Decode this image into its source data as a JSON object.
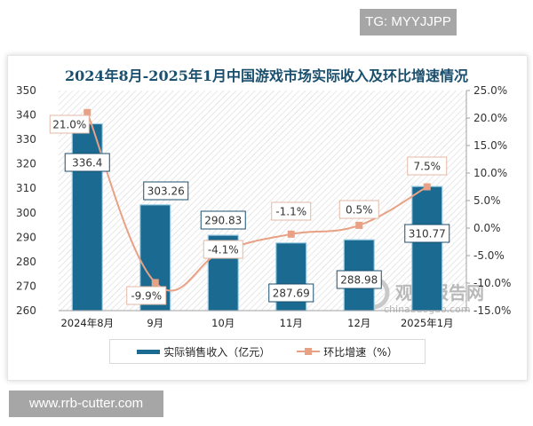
{
  "watermarks": {
    "top_right": "TG: MYYJJPP",
    "bottom_left": "www.rrb-cutter.com",
    "chart_logo": "观研报告网",
    "chart_logo_url": "chinabaogao.com"
  },
  "chart_data": {
    "type": "bar+line",
    "title": "2024年8月-2025年1月中国游戏市场实际收入及环比增速情况",
    "categories": [
      "2024年8月",
      "9月",
      "10月",
      "11月",
      "12月",
      "2025年1月"
    ],
    "series": [
      {
        "name": "实际销售收入（亿元）",
        "type": "bar",
        "axis": "left",
        "color": "#1a6a91",
        "values": [
          336.4,
          303.26,
          290.83,
          287.69,
          288.98,
          310.77
        ],
        "labels": [
          "336.4",
          "303.26",
          "290.83",
          "287.69",
          "288.98",
          "310.77"
        ]
      },
      {
        "name": "环比增速（%）",
        "type": "line",
        "axis": "right",
        "color": "#e8a184",
        "values": [
          21.0,
          -9.9,
          -4.1,
          -1.1,
          0.5,
          7.5
        ],
        "labels": [
          "21.0%",
          "-9.9%",
          "-4.1%",
          "-1.1%",
          "0.5%",
          "7.5%"
        ]
      }
    ],
    "y_left": {
      "min": 260,
      "max": 350,
      "step": 10,
      "ticks": [
        "350",
        "340",
        "330",
        "320",
        "310",
        "300",
        "290",
        "280",
        "270",
        "260"
      ]
    },
    "y_right": {
      "min": -15,
      "max": 25,
      "step": 5,
      "ticks": [
        "25.0%",
        "20.0%",
        "15.0%",
        "10.0%",
        "5.0%",
        "0.0%",
        "-5.0%",
        "-10.0%",
        "-15.0%"
      ]
    },
    "legend": {
      "position": "bottom",
      "items": [
        "实际销售收入（亿元）",
        "环比增速（%）"
      ]
    },
    "grid": false
  }
}
